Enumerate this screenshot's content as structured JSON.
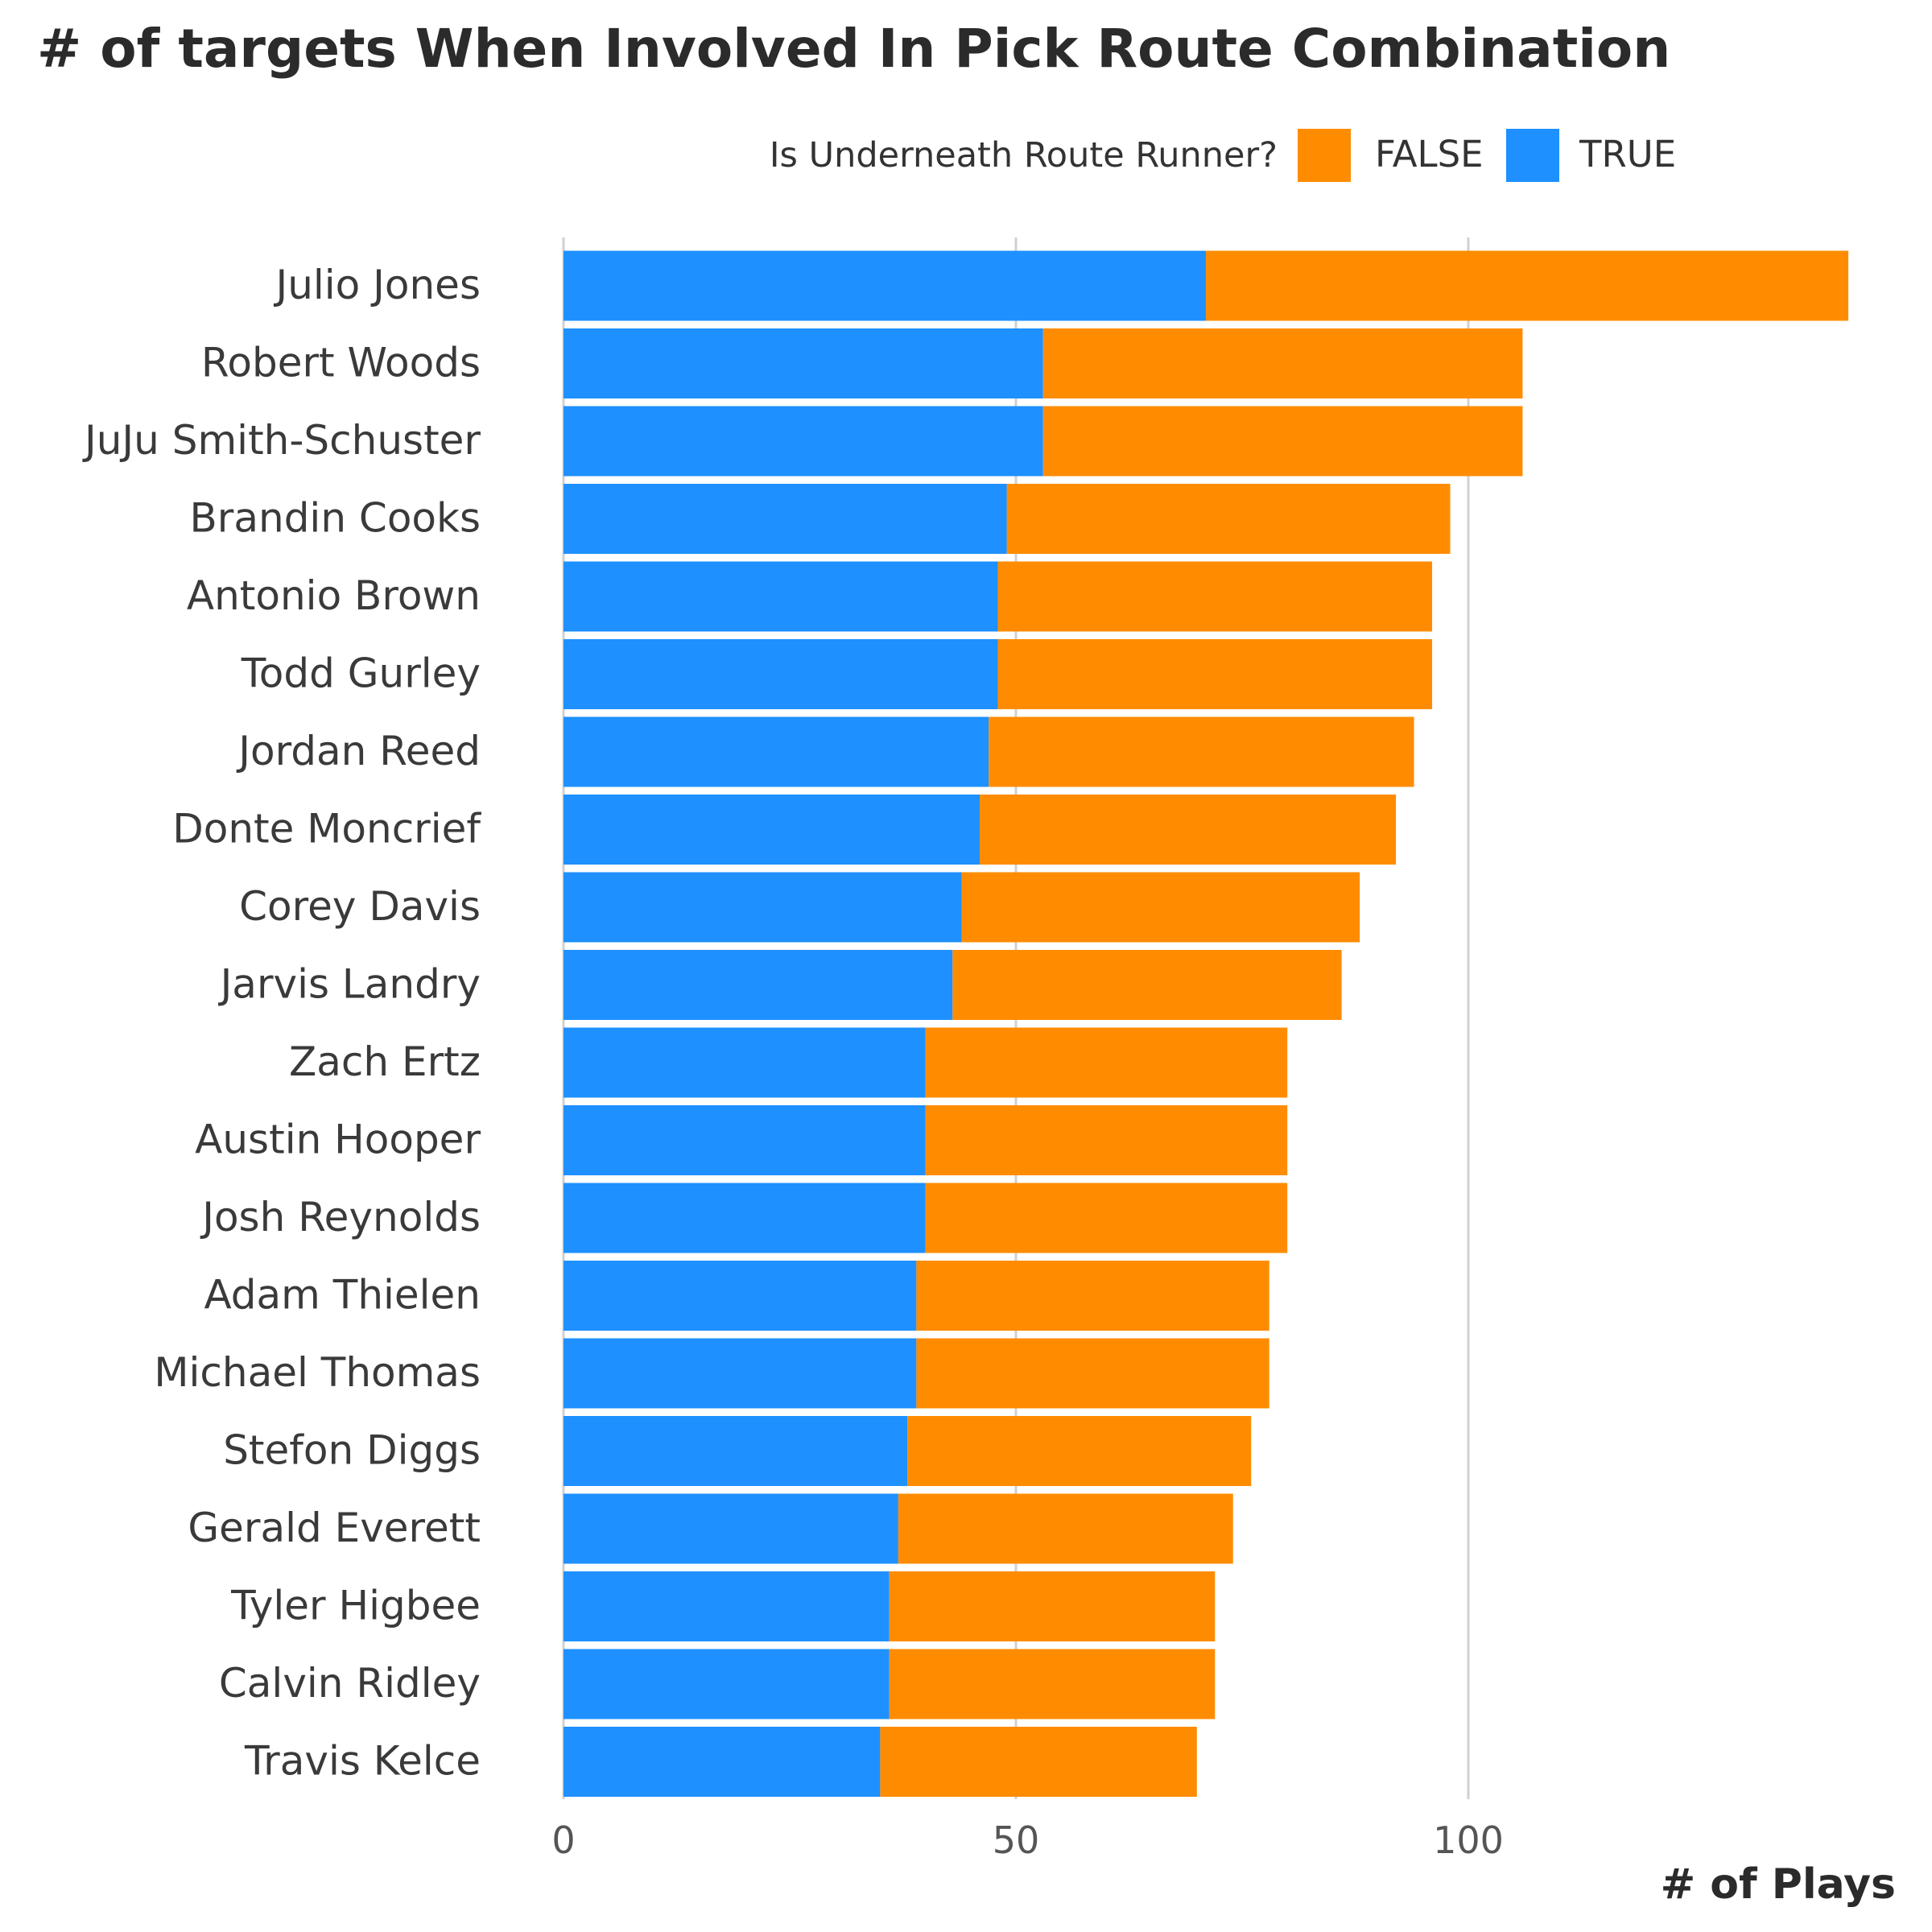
{
  "chart_data": {
    "type": "bar",
    "orientation": "horizontal",
    "stacked": true,
    "title": "# of targets When Involved In Pick Route Combination",
    "xlabel": "# of Plays",
    "ylabel": "",
    "xlim": [
      0,
      142
    ],
    "xticks": [
      0,
      50,
      100
    ],
    "grid": "vertical major gridlines",
    "legend": {
      "title": "Is Underneath Route Runner?",
      "placement": "top-right",
      "entries": [
        "FALSE",
        "TRUE"
      ]
    },
    "categories": [
      "Julio Jones",
      "Robert Woods",
      "JuJu Smith-Schuster",
      "Brandin Cooks",
      "Antonio Brown",
      "Todd Gurley",
      "Jordan Reed",
      "Donte Moncrief",
      "Corey Davis",
      "Jarvis Landry",
      "Zach Ertz",
      "Austin Hooper",
      "Josh Reynolds",
      "Adam Thielen",
      "Michael Thomas",
      "Stefon Diggs",
      "Gerald Everett",
      "Tyler Higbee",
      "Calvin Ridley",
      "Travis Kelce"
    ],
    "series": [
      {
        "name": "TRUE",
        "color": "#1E90FF",
        "values": [
          71,
          53,
          53,
          49,
          48,
          48,
          47,
          46,
          44,
          43,
          40,
          40,
          40,
          39,
          39,
          38,
          37,
          36,
          36,
          35
        ]
      },
      {
        "name": "FALSE",
        "color": "#FF8C00",
        "values": [
          71,
          53,
          53,
          49,
          48,
          48,
          47,
          46,
          44,
          43,
          40,
          40,
          40,
          39,
          39,
          38,
          37,
          36,
          36,
          35
        ]
      }
    ]
  }
}
